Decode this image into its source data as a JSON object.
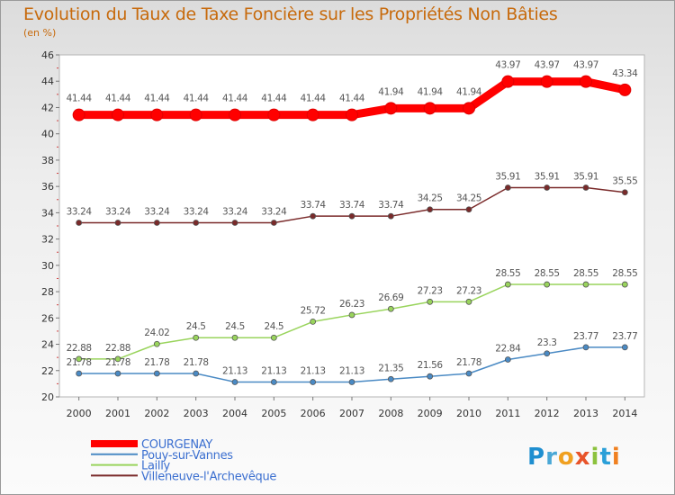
{
  "title": "Evolution du Taux de Taxe Foncière sur les Propriétés Non Bâties",
  "subtitle": "(en %)",
  "logo_text": "Proxiti",
  "chart_data": {
    "type": "line",
    "categories": [
      "2000",
      "2001",
      "2002",
      "2003",
      "2004",
      "2005",
      "2006",
      "2007",
      "2008",
      "2009",
      "2010",
      "2011",
      "2012",
      "2013",
      "2014"
    ],
    "ylim": [
      20,
      46
    ],
    "yticks": [
      20,
      22,
      24,
      26,
      28,
      30,
      32,
      34,
      36,
      38,
      40,
      42,
      44,
      46
    ],
    "grid": false,
    "legend_position": "bottom-left",
    "series": [
      {
        "name": "COURGENAY",
        "color": "#ff0000",
        "values": [
          41.44,
          41.44,
          41.44,
          41.44,
          41.44,
          41.44,
          41.44,
          41.44,
          41.94,
          41.94,
          41.94,
          43.97,
          43.97,
          43.97,
          43.34
        ],
        "labels": [
          "41.44",
          "41.44",
          "41.44",
          "41.44",
          "41.44",
          "41.44",
          "41.44",
          "41.44",
          "41.94",
          "41.94",
          "41.94",
          "43.97",
          "43.97",
          "43.97",
          "43.34"
        ]
      },
      {
        "name": "Pouy-sur-Vannes",
        "color": "#4a8ac4",
        "values": [
          21.78,
          21.78,
          21.78,
          21.78,
          21.13,
          21.13,
          21.13,
          21.13,
          21.35,
          21.56,
          21.78,
          22.84,
          23.3,
          23.77,
          23.77
        ],
        "labels": [
          "21.78",
          "21.78",
          "21.78",
          "21.78",
          "21.13",
          "21.13",
          "21.13",
          "21.13",
          "21.35",
          "21.56",
          "21.78",
          "22.84",
          "23.3",
          "23.77",
          "23.77"
        ]
      },
      {
        "name": "Lailly",
        "color": "#99d45c",
        "values": [
          22.88,
          22.88,
          24.02,
          24.5,
          24.5,
          24.5,
          25.72,
          26.23,
          26.69,
          27.23,
          27.23,
          28.55,
          28.55,
          28.55,
          28.55
        ],
        "labels": [
          "22.88",
          "22.88",
          "24.02",
          "24.5",
          "24.5",
          "24.5",
          "25.72",
          "26.23",
          "26.69",
          "27.23",
          "27.23",
          "28.55",
          "28.55",
          "28.55",
          "28.55"
        ]
      },
      {
        "name": "Villeneuve-l'Archevêque",
        "color": "#7a2a2a",
        "values": [
          33.24,
          33.24,
          33.24,
          33.24,
          33.24,
          33.24,
          33.74,
          33.74,
          33.74,
          34.25,
          34.25,
          35.91,
          35.91,
          35.91,
          35.55
        ],
        "labels": [
          "33.24",
          "33.24",
          "33.24",
          "33.24",
          "33.24",
          "33.24",
          "33.74",
          "33.74",
          "33.74",
          "34.25",
          "34.25",
          "35.91",
          "35.91",
          "35.91",
          "35.55"
        ]
      }
    ]
  }
}
